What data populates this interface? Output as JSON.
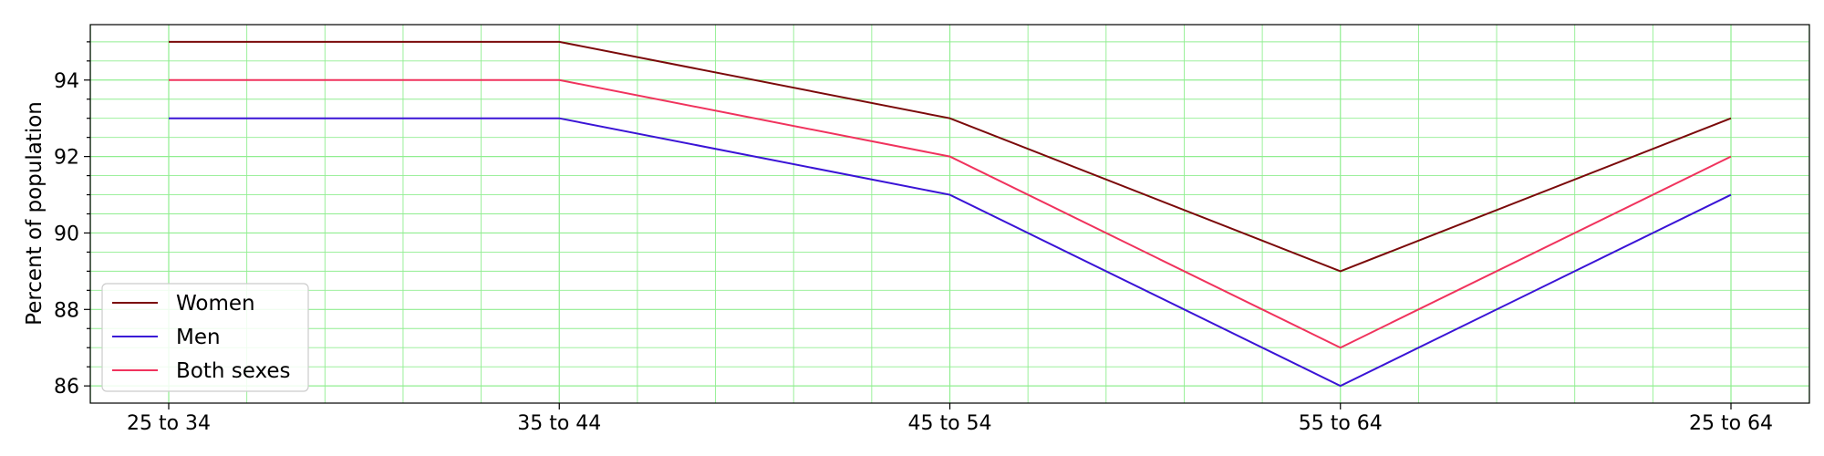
{
  "chart_data": {
    "type": "line",
    "title": "",
    "xlabel": "",
    "ylabel": "Percent of population",
    "categories": [
      "25 to 34",
      "35 to 44",
      "45 to 54",
      "55 to 64",
      "25 to 64"
    ],
    "series": [
      {
        "name": "Women",
        "color": "#7b0a0a",
        "values": [
          95,
          95,
          93,
          89,
          93
        ]
      },
      {
        "name": "Men",
        "color": "#3a14d6",
        "values": [
          93,
          93,
          91,
          86,
          91
        ]
      },
      {
        "name": "Both sexes",
        "color": "#f0335d",
        "values": [
          94,
          94,
          92,
          87,
          92
        ]
      }
    ],
    "ylim": [
      85.55,
      95.45
    ],
    "yticks": [
      86,
      88,
      90,
      92,
      94
    ],
    "grid": true,
    "grid_minor": true,
    "grid_color": "#90ee90",
    "legend": "lower-left"
  }
}
